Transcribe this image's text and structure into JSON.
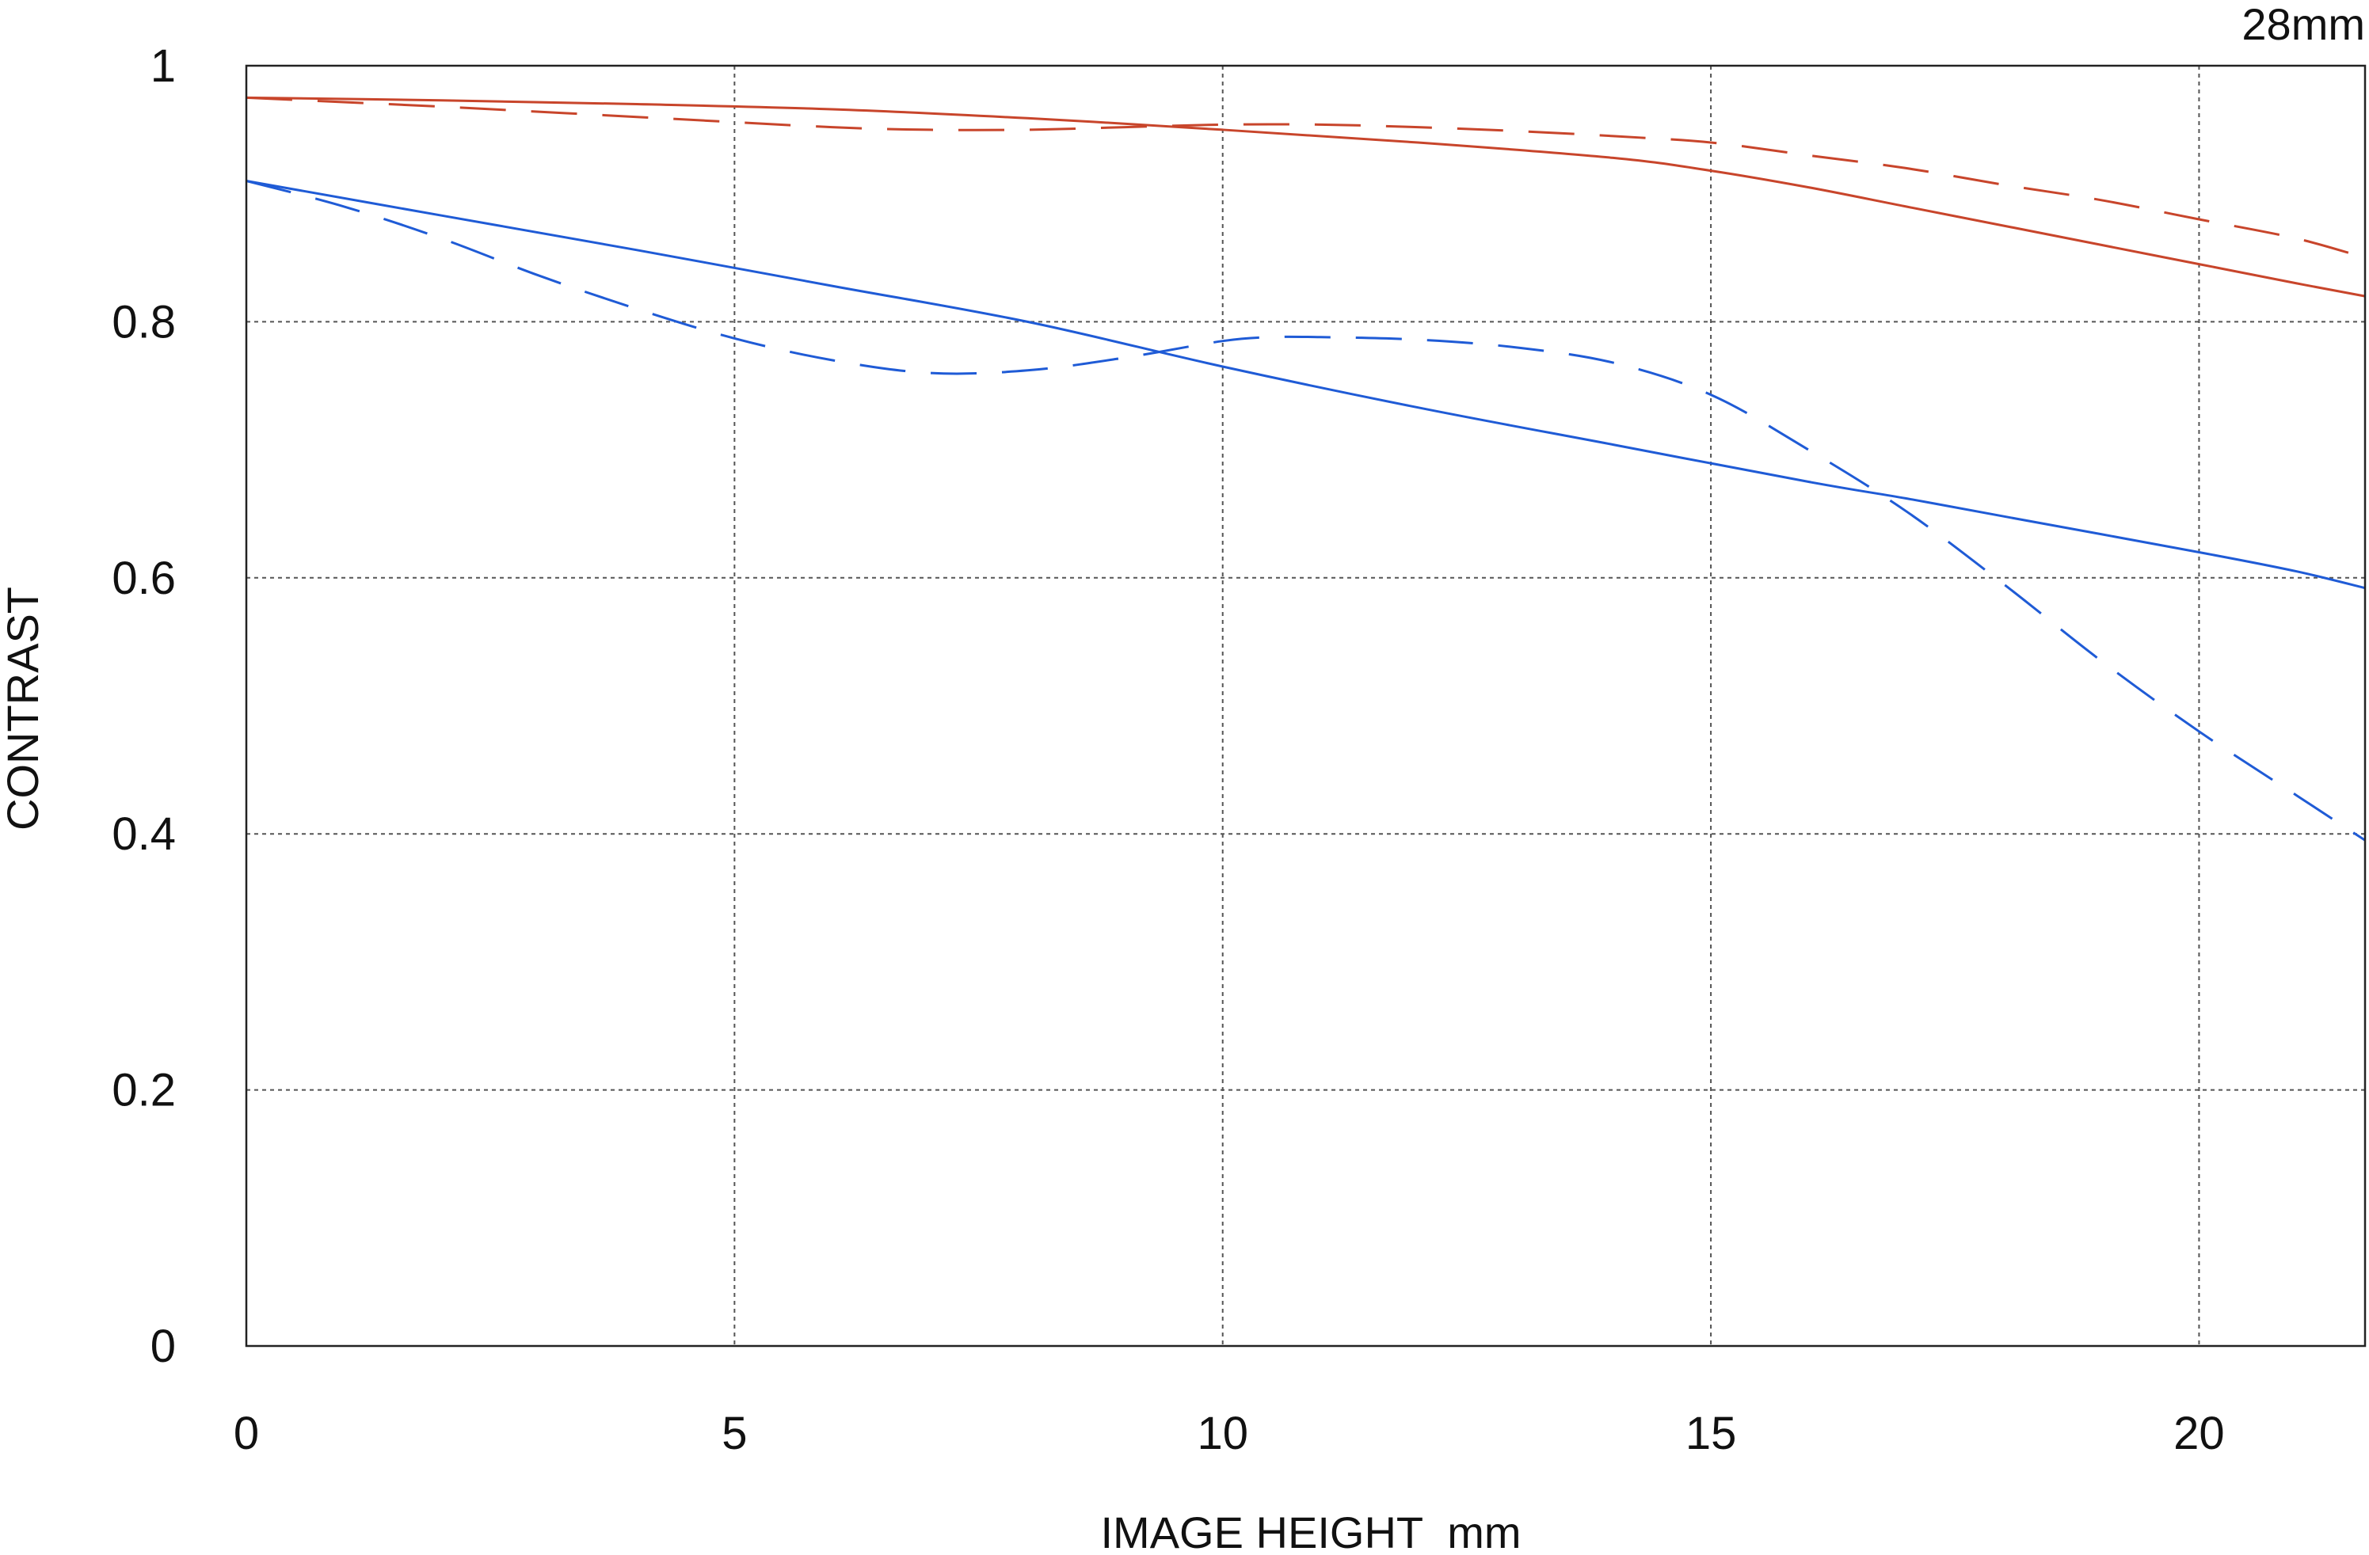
{
  "chart_data": {
    "type": "line",
    "title": "28mm",
    "xlabel": "IMAGE HEIGHT  mm",
    "ylabel": "CONTRAST",
    "xlim": [
      0,
      21.7
    ],
    "ylim": [
      0,
      1
    ],
    "xticks": [
      0,
      5,
      10,
      15,
      20
    ],
    "xtick_labels": [
      "0",
      "5",
      "10",
      "15",
      "20"
    ],
    "yticks": [
      0,
      0.2,
      0.4,
      0.6,
      0.8,
      1
    ],
    "ytick_labels": [
      "0",
      "0.2",
      "0.4",
      "0.6",
      "0.8",
      "1"
    ],
    "grid": true,
    "series": [
      {
        "color": "#c8452b",
        "style": "solid",
        "x": [
          0,
          2,
          4,
          6,
          8,
          10,
          12,
          14,
          15,
          16,
          17,
          18,
          19,
          20,
          21,
          21.7
        ],
        "y": [
          0.975,
          0.973,
          0.97,
          0.966,
          0.959,
          0.95,
          0.94,
          0.928,
          0.918,
          0.905,
          0.89,
          0.875,
          0.86,
          0.845,
          0.83,
          0.82
        ]
      },
      {
        "color": "#c8452b",
        "style": "dashed",
        "x": [
          0,
          2,
          4,
          6,
          7,
          8,
          9,
          10,
          11,
          12,
          13,
          14,
          15,
          16,
          17,
          18,
          19,
          20,
          21,
          21.7
        ],
        "y": [
          0.975,
          0.968,
          0.96,
          0.952,
          0.95,
          0.95,
          0.952,
          0.954,
          0.954,
          0.952,
          0.949,
          0.945,
          0.94,
          0.93,
          0.92,
          0.907,
          0.895,
          0.88,
          0.865,
          0.85
        ]
      },
      {
        "color": "#1f5bd6",
        "style": "solid",
        "x": [
          0,
          2,
          4,
          6,
          8,
          10,
          12,
          14,
          16,
          17,
          18,
          20,
          21,
          21.7
        ],
        "y": [
          0.91,
          0.883,
          0.856,
          0.828,
          0.8,
          0.765,
          0.733,
          0.704,
          0.675,
          0.662,
          0.648,
          0.62,
          0.605,
          0.592
        ]
      },
      {
        "color": "#1f5bd6",
        "style": "dashed",
        "x": [
          0,
          1,
          2,
          3,
          4,
          5,
          6,
          7,
          8,
          9,
          10,
          10.5,
          11,
          12,
          13,
          14,
          15,
          16,
          17,
          18,
          19,
          20,
          21,
          21.7
        ],
        "y": [
          0.91,
          0.89,
          0.865,
          0.836,
          0.81,
          0.787,
          0.77,
          0.76,
          0.762,
          0.772,
          0.785,
          0.788,
          0.788,
          0.786,
          0.78,
          0.768,
          0.743,
          0.7,
          0.652,
          0.595,
          0.535,
          0.48,
          0.43,
          0.395
        ]
      }
    ]
  }
}
